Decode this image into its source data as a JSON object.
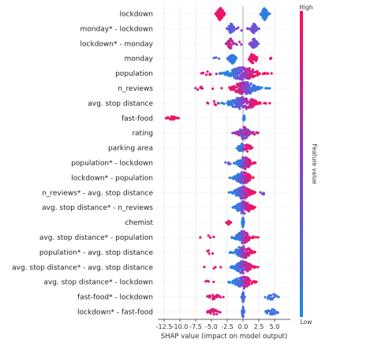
{
  "chart_data": {
    "type": "scatter",
    "subtype": "shap-beeswarm",
    "title": "",
    "xlabel": "SHAP value (impact on model output)",
    "xlim": [
      -13.5,
      7.5
    ],
    "xticks": [
      -12.5,
      -10.0,
      -7.5,
      -5.0,
      -2.5,
      0.0,
      2.5,
      5.0
    ],
    "xtick_labels": [
      "-12.5",
      "-10.0",
      "-7.5",
      "-5.0",
      "-2.5",
      "0.0",
      "2.5",
      "5.0"
    ],
    "grid": "vertical",
    "colorbar": {
      "label": "Feature value",
      "high_label": "High",
      "low_label": "Low",
      "high_color": "#ff0d57",
      "low_color": "#1e88e5"
    },
    "features": [
      {
        "name": "lockdown",
        "clusters": [
          {
            "x": -3.6,
            "sd": 0.35,
            "n": 70,
            "v": 0.92,
            "spread": 1.0
          },
          {
            "x": 3.4,
            "sd": 0.3,
            "n": 70,
            "v": 0.08,
            "spread": 1.0
          }
        ]
      },
      {
        "name": "monday* - lockdown",
        "clusters": [
          {
            "x": -1.9,
            "sd": 0.3,
            "n": 40,
            "v": 0.3,
            "spread": 0.8
          },
          {
            "x": 1.7,
            "sd": 0.3,
            "n": 40,
            "v": 0.35,
            "spread": 0.8
          },
          {
            "x": -0.2,
            "sd": 0.6,
            "n": 8,
            "v": 0.5,
            "spread": 0.3
          }
        ]
      },
      {
        "name": "lockdown* - monday",
        "clusters": [
          {
            "x": -2.0,
            "sd": 0.3,
            "n": 40,
            "v": 0.75,
            "spread": 0.8
          },
          {
            "x": 1.7,
            "sd": 0.35,
            "n": 40,
            "v": 0.4,
            "spread": 0.8
          },
          {
            "x": -0.4,
            "sd": 0.8,
            "n": 6,
            "v": 0.6,
            "spread": 0.3
          }
        ]
      },
      {
        "name": "monday",
        "clusters": [
          {
            "x": -1.7,
            "sd": 0.35,
            "n": 45,
            "v": 0.1,
            "spread": 0.8
          },
          {
            "x": 1.6,
            "sd": 0.4,
            "n": 45,
            "v": 0.9,
            "spread": 0.8
          },
          {
            "x": -4.0,
            "sd": 0.5,
            "n": 3,
            "v": 0.2,
            "spread": 0.2
          },
          {
            "x": 4.3,
            "sd": 0.3,
            "n": 3,
            "v": 0.8,
            "spread": 0.2
          }
        ]
      },
      {
        "name": "population",
        "clusters": [
          {
            "x": 0.0,
            "sd": 1.6,
            "n": 190,
            "v": -1,
            "spread": 1.0
          },
          {
            "x": -5.5,
            "sd": 0.8,
            "n": 8,
            "v": 0.85,
            "spread": 0.3
          }
        ]
      },
      {
        "name": "n_reviews",
        "clusters": [
          {
            "x": 0.3,
            "sd": 1.3,
            "n": 160,
            "v": -2,
            "spread": 1.0
          },
          {
            "x": -6.5,
            "sd": 1.0,
            "n": 8,
            "v": 0.85,
            "spread": 0.3
          }
        ]
      },
      {
        "name": "avg. stop distance",
        "clusters": [
          {
            "x": 0.0,
            "sd": 1.5,
            "n": 170,
            "v": -1,
            "spread": 1.0
          },
          {
            "x": -4.5,
            "sd": 0.9,
            "n": 6,
            "v": 0.85,
            "spread": 0.3
          }
        ]
      },
      {
        "name": "fast-food",
        "clusters": [
          {
            "x": -11.3,
            "sd": 0.45,
            "n": 30,
            "v": 0.95,
            "spread": 0.3
          },
          {
            "x": 0.15,
            "sd": 0.05,
            "n": 20,
            "v": 0.05,
            "spread": 0.4
          }
        ]
      },
      {
        "name": "rating",
        "clusters": [
          {
            "x": 0.1,
            "sd": 0.6,
            "n": 90,
            "v": -3,
            "spread": 1.0
          },
          {
            "x": 1.8,
            "sd": 0.5,
            "n": 5,
            "v": 0.8,
            "spread": 0.3
          }
        ]
      },
      {
        "name": "parking area",
        "clusters": [
          {
            "x": -0.3,
            "sd": 0.3,
            "n": 30,
            "v": 0.1,
            "spread": 0.8
          },
          {
            "x": 0.7,
            "sd": 0.4,
            "n": 25,
            "v": 0.85,
            "spread": 0.6
          }
        ]
      },
      {
        "name": "population* - lockdown",
        "clusters": [
          {
            "x": 0.2,
            "sd": 0.7,
            "n": 130,
            "v": -1,
            "spread": 1.0
          },
          {
            "x": -2.2,
            "sd": 0.4,
            "n": 4,
            "v": 0.3,
            "spread": 0.3
          }
        ]
      },
      {
        "name": "lockdown* - population",
        "clusters": [
          {
            "x": 0.0,
            "sd": 0.8,
            "n": 120,
            "v": -1,
            "spread": 1.0
          }
        ]
      },
      {
        "name": "n_reviews* - avg. stop distance",
        "clusters": [
          {
            "x": 0.0,
            "sd": 0.9,
            "n": 120,
            "v": -1,
            "spread": 1.0
          },
          {
            "x": 3.2,
            "sd": 0.4,
            "n": 4,
            "v": 0.4,
            "spread": 0.3
          }
        ]
      },
      {
        "name": "avg. stop distance* - n_reviews",
        "clusters": [
          {
            "x": 0.1,
            "sd": 0.8,
            "n": 120,
            "v": -1,
            "spread": 1.0
          }
        ]
      },
      {
        "name": "chemist",
        "clusters": [
          {
            "x": 0.0,
            "sd": 0.07,
            "n": 40,
            "v": 0.08,
            "spread": 0.8
          },
          {
            "x": -2.3,
            "sd": 0.2,
            "n": 8,
            "v": 0.92,
            "spread": 0.3
          }
        ]
      },
      {
        "name": "avg. stop distance* - population",
        "clusters": [
          {
            "x": 0.0,
            "sd": 0.8,
            "n": 100,
            "v": -1,
            "spread": 1.0
          },
          {
            "x": -5.2,
            "sd": 0.7,
            "n": 4,
            "v": 0.85,
            "spread": 0.3
          }
        ]
      },
      {
        "name": "population* - avg. stop distance",
        "clusters": [
          {
            "x": 0.0,
            "sd": 0.9,
            "n": 110,
            "v": -1,
            "spread": 1.0
          },
          {
            "x": -5.5,
            "sd": 0.7,
            "n": 4,
            "v": 0.85,
            "spread": 0.3
          }
        ]
      },
      {
        "name": "avg. stop distance* - avg. stop distance",
        "clusters": [
          {
            "x": 0.0,
            "sd": 0.9,
            "n": 110,
            "v": -1,
            "spread": 1.0
          },
          {
            "x": -5.0,
            "sd": 0.7,
            "n": 4,
            "v": 0.85,
            "spread": 0.3
          }
        ]
      },
      {
        "name": "avg. stop distance* - lockdown",
        "clusters": [
          {
            "x": 0.0,
            "sd": 0.9,
            "n": 110,
            "v": -1,
            "spread": 1.0
          },
          {
            "x": -5.2,
            "sd": 0.7,
            "n": 4,
            "v": 0.85,
            "spread": 0.3
          }
        ]
      },
      {
        "name": "fast-food* - lockdown",
        "clusters": [
          {
            "x": -4.6,
            "sd": 0.6,
            "n": 20,
            "v": 0.85,
            "spread": 0.5
          },
          {
            "x": 0.0,
            "sd": 0.1,
            "n": 25,
            "v": 0.2,
            "spread": 0.8
          },
          {
            "x": 4.6,
            "sd": 0.6,
            "n": 20,
            "v": 0.15,
            "spread": 0.5
          }
        ]
      },
      {
        "name": "lockdown* - fast-food",
        "clusters": [
          {
            "x": -4.6,
            "sd": 0.6,
            "n": 20,
            "v": 0.85,
            "spread": 0.5
          },
          {
            "x": 0.0,
            "sd": 0.1,
            "n": 25,
            "v": 0.2,
            "spread": 0.8
          },
          {
            "x": 4.6,
            "sd": 0.6,
            "n": 20,
            "v": 0.15,
            "spread": 0.5
          }
        ]
      }
    ]
  }
}
